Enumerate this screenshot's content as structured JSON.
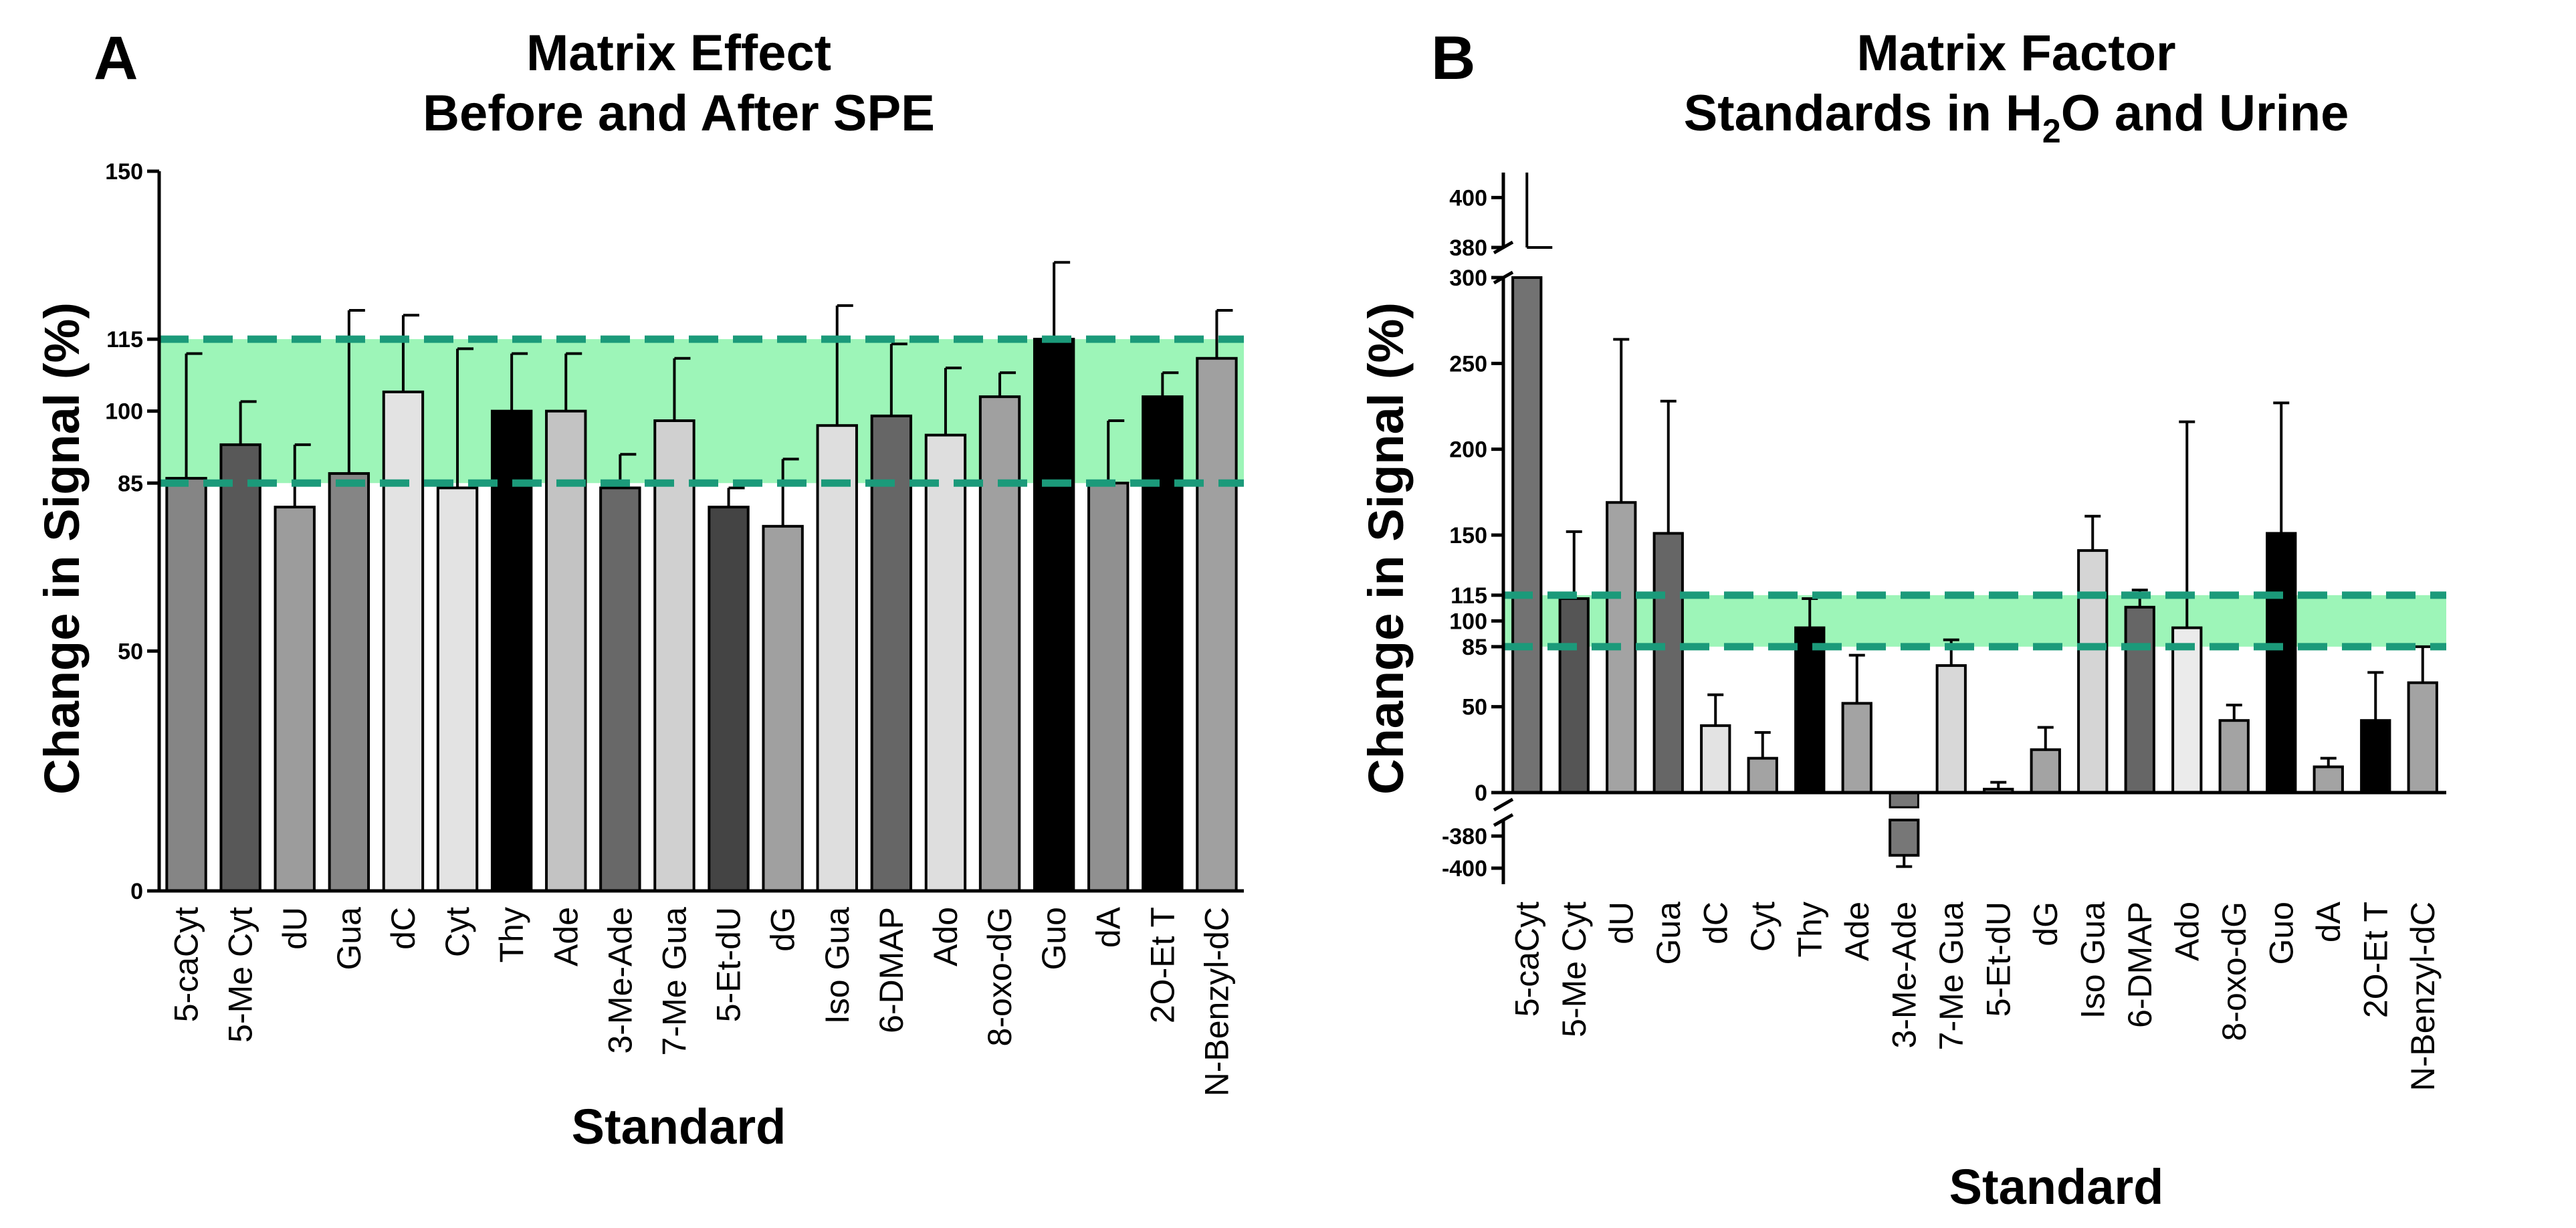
{
  "chart_data": [
    {
      "panel": "A",
      "type": "bar",
      "title_lines": [
        "Matrix Effect",
        "Before and After SPE"
      ],
      "xlabel": "Standard",
      "ylabel": "Change in Signal (%)",
      "ylim": [
        0,
        150
      ],
      "yticks": [
        0,
        50,
        85,
        100,
        115,
        150
      ],
      "band": {
        "from": 85,
        "to": 115,
        "color": "#9df5b8",
        "line_color": "#1b9a7a"
      },
      "categories": [
        "5-caCyt",
        "5-Me Cyt",
        "dU",
        "Gua",
        "dC",
        "Cyt",
        "Thy",
        "Ade",
        "3-Me-Ade",
        "7-Me Gua",
        "5-Et-dU",
        "dG",
        "Iso Gua",
        "6-DMAP",
        "Ado",
        "8-oxo-dG",
        "Guo",
        "dA",
        "2O-Et T",
        "N-Benzyl-dC"
      ],
      "values": [
        86,
        93,
        80,
        87,
        104,
        84,
        100,
        100,
        84,
        98,
        80,
        76,
        97,
        99,
        95,
        103,
        115,
        85,
        103,
        111
      ],
      "errors": [
        26,
        9,
        13,
        34,
        16,
        29,
        12,
        12,
        7,
        13,
        4,
        14,
        25,
        15,
        14,
        5,
        16,
        13,
        5,
        10
      ],
      "colors": [
        "#858585",
        "#585858",
        "#9c9c9c",
        "#858585",
        "#e3e3e3",
        "#e3e3e3",
        "#000000",
        "#c3c3c3",
        "#686868",
        "#d0d0d0",
        "#444444",
        "#a0a0a0",
        "#dedede",
        "#666666",
        "#dedede",
        "#a0a0a0",
        "#000000",
        "#909090",
        "#000000",
        "#a0a0a0"
      ]
    },
    {
      "panel": "B",
      "type": "bar",
      "title_lines": [
        "Matrix Factor",
        "Standards in H",
        "2",
        "O and Urine"
      ],
      "xlabel": "Standard",
      "ylabel": "Change in Signal (%)",
      "ylim_main": [
        0,
        300
      ],
      "ylim_top": [
        380,
        410
      ],
      "ylim_bottom": [
        -410,
        -370
      ],
      "yticks_main": [
        0,
        50,
        85,
        100,
        115,
        150,
        200,
        250,
        300
      ],
      "yticks_top": [
        380,
        400
      ],
      "yticks_bottom": [
        -380,
        -400
      ],
      "band": {
        "from": 85,
        "to": 115,
        "color": "#9df5b8",
        "line_color": "#1b9a7a"
      },
      "categories": [
        "5-caCyt",
        "5-Me Cyt",
        "dU",
        "Gua",
        "dC",
        "Cyt",
        "Thy",
        "Ade",
        "3-Me-Ade",
        "7-Me Gua",
        "5-Et-dU",
        "dG",
        "Iso Gua",
        "6-DMAP",
        "Ado",
        "8-oxo-dG",
        "Guo",
        "dA",
        "2O-Et T",
        "N-Benzyl-dC"
      ],
      "values": [
        390,
        113,
        169,
        151,
        39,
        20,
        96,
        52,
        -392,
        74,
        2,
        25,
        141,
        108,
        96,
        42,
        151,
        15,
        42,
        64
      ],
      "errors": [
        20,
        39,
        95,
        77,
        18,
        15,
        17,
        28,
        7,
        15,
        4,
        13,
        20,
        10,
        120,
        9,
        76,
        5,
        28,
        21
      ],
      "colors": [
        "#727272",
        "#555555",
        "#a3a3a3",
        "#666666",
        "#e3e3e3",
        "#a3a3a3",
        "#000000",
        "#a3a3a3",
        "#777777",
        "#d8d8d8",
        "#d8d8d8",
        "#a3a3a3",
        "#d5d5d5",
        "#666666",
        "#ebebeb",
        "#a3a3a3",
        "#000000",
        "#a3a3a3",
        "#000000",
        "#a3a3a3"
      ]
    }
  ]
}
